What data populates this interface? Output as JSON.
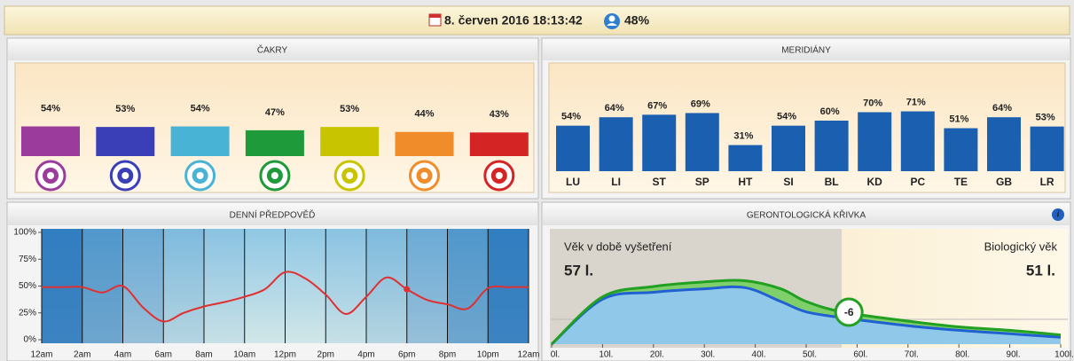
{
  "header": {
    "datetime": "8. červen 2016 18:13:42",
    "percent": "48%"
  },
  "chart_data": [
    {
      "type": "chakra",
      "title": "ČAKRY",
      "values": [
        54,
        53,
        54,
        47,
        53,
        44,
        43
      ],
      "value_labels": [
        "54%",
        "53%",
        "54%",
        "47%",
        "53%",
        "44%",
        "43%"
      ],
      "colors": [
        "#9b3c9c",
        "#3a3fb8",
        "#48b3d4",
        "#1f9a3a",
        "#c8c400",
        "#f08c2a",
        "#d42424"
      ]
    },
    {
      "type": "bar",
      "title": "MERIDIÁNY",
      "categories": [
        "LU",
        "LI",
        "ST",
        "SP",
        "HT",
        "SI",
        "BL",
        "KD",
        "PC",
        "TE",
        "GB",
        "LR"
      ],
      "values": [
        54,
        64,
        67,
        69,
        31,
        54,
        60,
        70,
        71,
        51,
        64,
        53
      ],
      "value_labels": [
        "54%",
        "64%",
        "67%",
        "69%",
        "31%",
        "54%",
        "60%",
        "70%",
        "71%",
        "51%",
        "64%",
        "53%"
      ],
      "color": "#1a5fb0"
    },
    {
      "type": "line",
      "title": "DENNÍ PŘEDPOVĚĎ",
      "x": [
        0,
        1,
        2,
        3,
        4,
        5,
        6,
        7,
        8,
        9,
        10,
        11,
        12,
        13,
        14,
        15,
        16,
        17,
        18,
        19,
        20,
        21,
        22,
        23,
        24
      ],
      "values": [
        49,
        49,
        49,
        44,
        50,
        30,
        17,
        25,
        31,
        35,
        40,
        47,
        63,
        57,
        42,
        24,
        40,
        58,
        47,
        37,
        33,
        29,
        48,
        49,
        49
      ],
      "color": "#e03030",
      "highlight": 18,
      "xlim": [
        0,
        24
      ],
      "xticks": [
        {
          "value": 0,
          "label": "12am"
        },
        {
          "value": 2,
          "label": "2am"
        },
        {
          "value": 4,
          "label": "4am"
        },
        {
          "value": 6,
          "label": "6am"
        },
        {
          "value": 8,
          "label": "8am"
        },
        {
          "value": 10,
          "label": "10am"
        },
        {
          "value": 12,
          "label": "12pm"
        },
        {
          "value": 14,
          "label": "2pm"
        },
        {
          "value": 16,
          "label": "4pm"
        },
        {
          "value": 18,
          "label": "6pm"
        },
        {
          "value": 20,
          "label": "8pm"
        },
        {
          "value": 22,
          "label": "10pm"
        },
        {
          "value": 24,
          "label": "12am"
        }
      ],
      "ylim": [
        0,
        100
      ],
      "yticks": [
        {
          "value": 0,
          "label": "0%"
        },
        {
          "value": 25,
          "label": "25%"
        },
        {
          "value": 50,
          "label": "50%"
        },
        {
          "value": 75,
          "label": "75%"
        },
        {
          "value": 100,
          "label": "100%"
        }
      ]
    },
    {
      "type": "area",
      "title": "GERONTOLOGICKÁ KŘIVKA",
      "x": [
        0,
        10,
        20,
        30,
        38,
        45,
        50,
        57,
        70,
        80,
        90,
        100
      ],
      "series": [
        {
          "name": "Biologický věk",
          "color": "#22a022",
          "values": [
            0,
            41,
            50,
            54,
            55,
            48,
            37,
            28,
            20,
            15,
            12,
            8
          ]
        },
        {
          "name": "Věk v době vyšetření",
          "color": "#2060d0",
          "values": [
            0,
            39,
            45,
            48,
            49,
            37,
            28,
            23,
            16,
            12,
            9,
            6
          ]
        }
      ],
      "xlim": [
        0,
        100
      ],
      "xticks": [
        {
          "value": 0,
          "label": "0l."
        },
        {
          "value": 10,
          "label": "10l."
        },
        {
          "value": 20,
          "label": "20l."
        },
        {
          "value": 30,
          "label": "30l."
        },
        {
          "value": 40,
          "label": "40l."
        },
        {
          "value": 50,
          "label": "50l."
        },
        {
          "value": 60,
          "label": "60l."
        },
        {
          "value": 70,
          "label": "70l."
        },
        {
          "value": 80,
          "label": "80l."
        },
        {
          "value": 90,
          "label": "90l."
        },
        {
          "value": 100,
          "label": "100l."
        }
      ],
      "exam_age": {
        "label": "Věk v době vyšetření",
        "value": 57,
        "value_label": "57 l."
      },
      "bio_age": {
        "label": "Biologický věk",
        "value": 51,
        "value_label": "51 l."
      },
      "difference": -6
    }
  ]
}
